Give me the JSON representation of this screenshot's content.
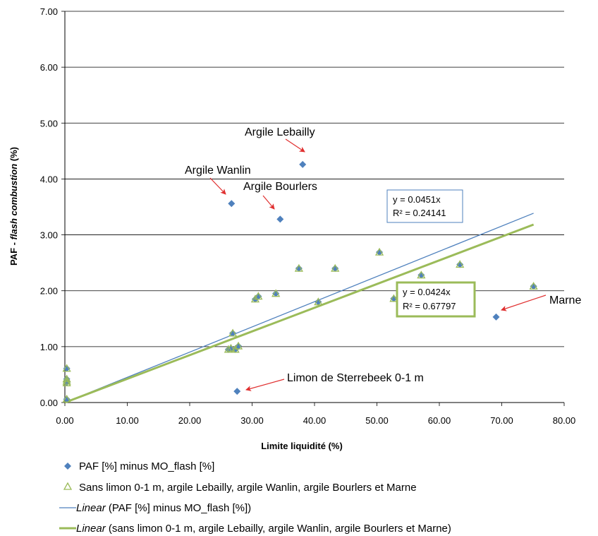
{
  "chart_data": {
    "type": "scatter",
    "xlabel": "Limite liquidité (%)",
    "ylabel_bold": "PAF - ",
    "ylabel_italic": "flash combustion",
    "ylabel_suffix": " (%)",
    "xlim": [
      0,
      80
    ],
    "ylim": [
      0,
      7
    ],
    "xticks": [
      "0.00",
      "10.00",
      "20.00",
      "30.00",
      "40.00",
      "50.00",
      "60.00",
      "70.00",
      "80.00"
    ],
    "yticks": [
      "0.00",
      "1.00",
      "2.00",
      "3.00",
      "4.00",
      "5.00",
      "6.00",
      "7.00"
    ],
    "grid": "horizontal",
    "colors": {
      "series1": "#4f81bd",
      "series2": "#9bbb59",
      "trend1": "#4f81bd",
      "trend2": "#9bbb59",
      "arrow": "#e03030"
    },
    "series": [
      {
        "name": "PAF [%] minus MO_flash [%]",
        "marker": "diamond",
        "points": [
          [
            0.3,
            0.61
          ],
          [
            0.3,
            0.42
          ],
          [
            0.3,
            0.38
          ],
          [
            0.3,
            0.36
          ],
          [
            0.3,
            0.06
          ],
          [
            26.2,
            0.95
          ],
          [
            26.6,
            0.97
          ],
          [
            26.9,
            1.24
          ],
          [
            27.3,
            0.95
          ],
          [
            27.8,
            1.01
          ],
          [
            30.5,
            1.85
          ],
          [
            31.0,
            1.9
          ],
          [
            33.8,
            1.95
          ],
          [
            37.5,
            2.4
          ],
          [
            40.6,
            1.8
          ],
          [
            43.3,
            2.4
          ],
          [
            50.4,
            2.69
          ],
          [
            52.7,
            1.86
          ],
          [
            57.1,
            2.28
          ],
          [
            63.3,
            2.47
          ],
          [
            75.1,
            2.08
          ],
          [
            38.1,
            4.26
          ],
          [
            26.7,
            3.56
          ],
          [
            34.5,
            3.28
          ],
          [
            69.1,
            1.53
          ],
          [
            27.6,
            0.2
          ]
        ]
      },
      {
        "name": "Sans limon 0-1 m, argile Lebailly, argile Wanlin, argile Bourlers et Marne",
        "marker": "triangle",
        "points": [
          [
            0.3,
            0.61
          ],
          [
            0.3,
            0.42
          ],
          [
            0.3,
            0.38
          ],
          [
            0.3,
            0.35
          ],
          [
            0.3,
            0.06
          ],
          [
            26.2,
            0.95
          ],
          [
            26.6,
            0.97
          ],
          [
            26.9,
            1.24
          ],
          [
            27.3,
            0.95
          ],
          [
            27.8,
            1.01
          ],
          [
            30.5,
            1.85
          ],
          [
            31.0,
            1.9
          ],
          [
            33.8,
            1.95
          ],
          [
            37.5,
            2.4
          ],
          [
            40.6,
            1.8
          ],
          [
            43.3,
            2.4
          ],
          [
            50.4,
            2.69
          ],
          [
            52.7,
            1.86
          ],
          [
            57.1,
            2.28
          ],
          [
            63.3,
            2.47
          ],
          [
            75.1,
            2.08
          ]
        ]
      }
    ],
    "trendlines": [
      {
        "label_italic": "Linear",
        "label_rest": " (PAF [%] minus MO_flash [%])",
        "slope": 0.0451,
        "x_end": 75.1,
        "eq": "y = 0.0451x",
        "r2": "R² = 0.24141"
      },
      {
        "label_italic": "Linear",
        "label_rest": " (sans limon 0-1 m, argile Lebailly, argile Wanlin, argile Bourlers et Marne)",
        "slope": 0.0424,
        "x_end": 75.1,
        "eq": "y = 0.0424x",
        "r2": "R² = 0.67797"
      }
    ],
    "annotations": [
      {
        "text": "Argile Lebailly"
      },
      {
        "text": "Argile Wanlin"
      },
      {
        "text": "Argile Bourlers"
      },
      {
        "text": "Marne"
      },
      {
        "text": "Limon de Sterrebeek 0-1 m"
      }
    ]
  }
}
